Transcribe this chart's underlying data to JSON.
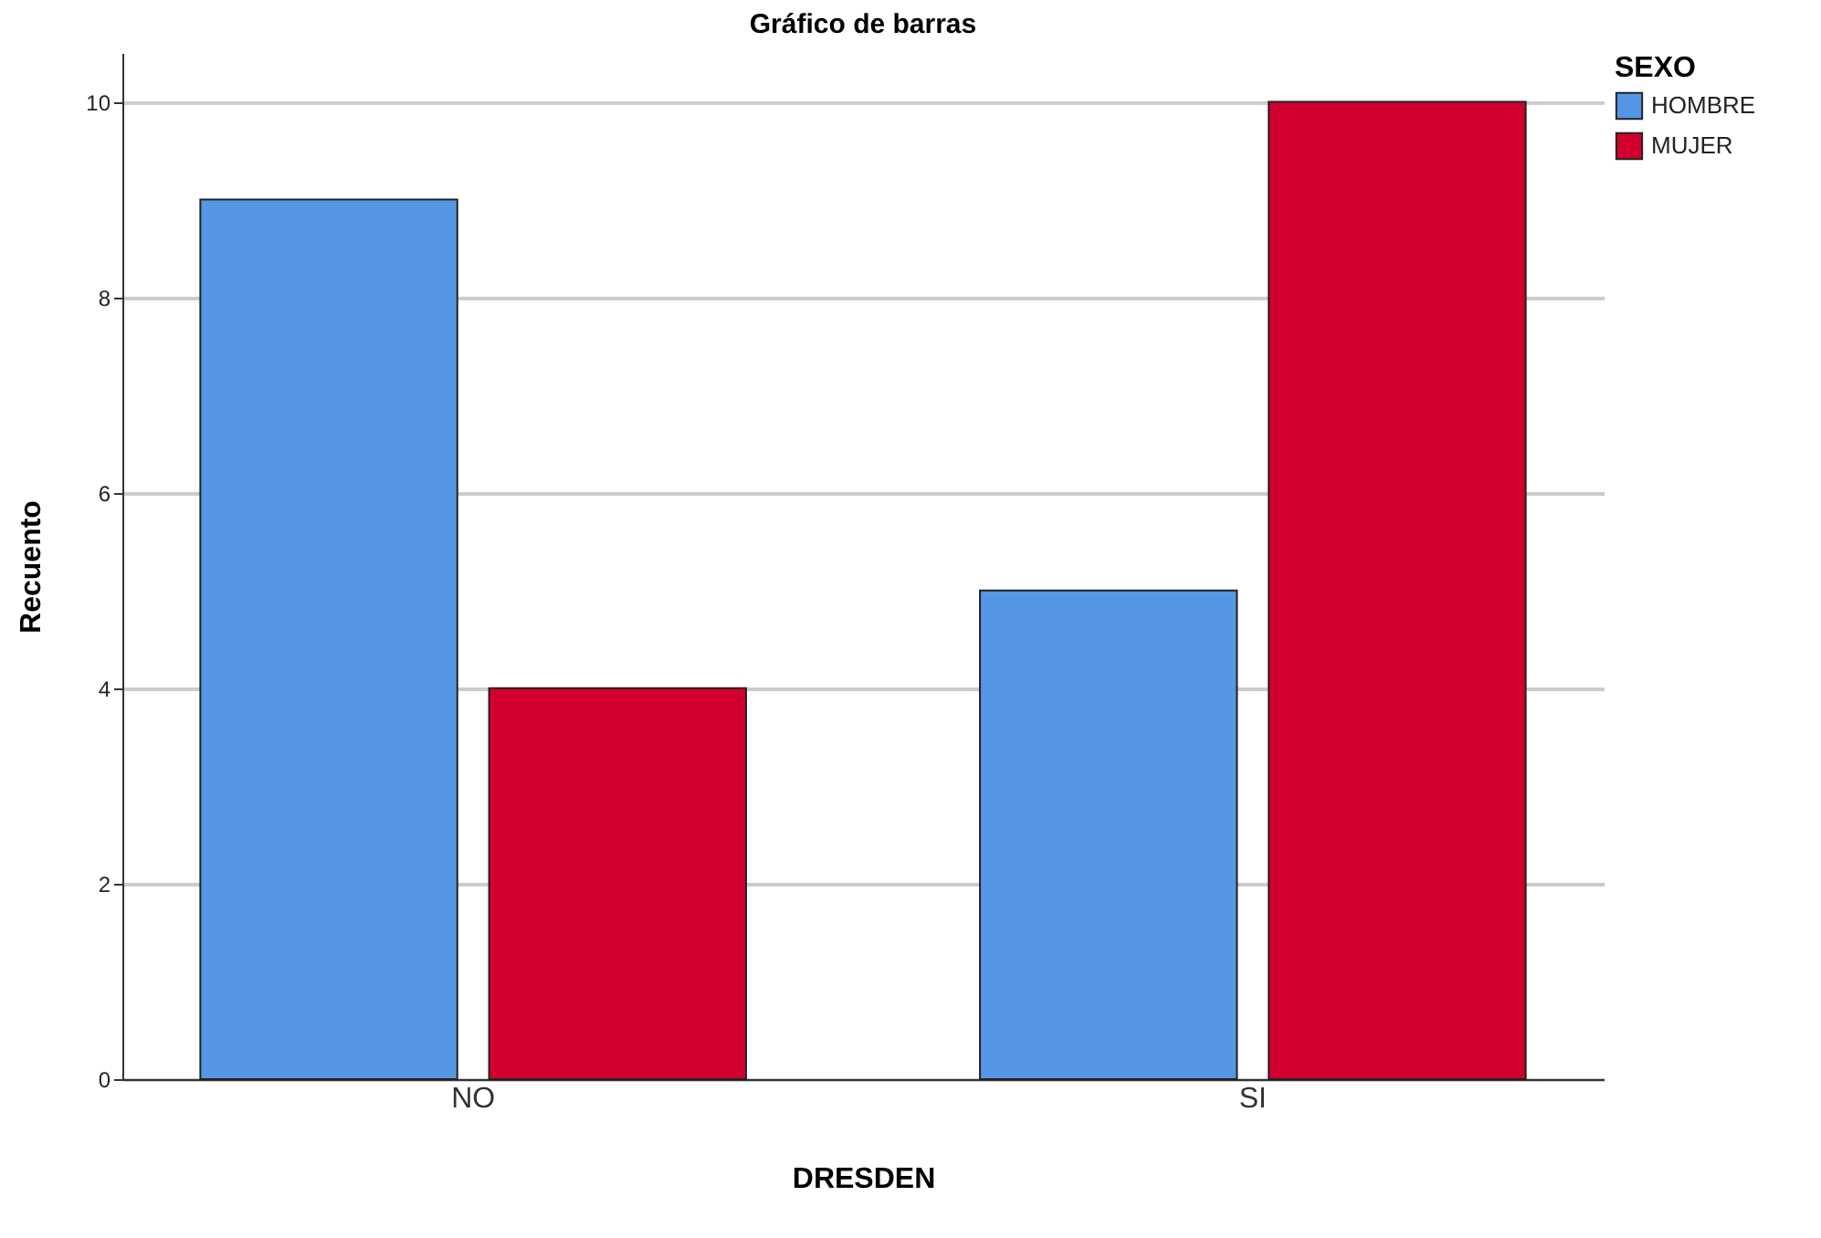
{
  "chart_data": {
    "type": "bar",
    "title": "Gráfico de barras",
    "xlabel": "DRESDEN",
    "ylabel": "Recuento",
    "legend_title": "SEXO",
    "categories": [
      "NO",
      "SI"
    ],
    "series": [
      {
        "name": "HOMBRE",
        "color": "#5596e5",
        "values": [
          9,
          5
        ]
      },
      {
        "name": "MUJER",
        "color": "#d2002e",
        "values": [
          4,
          10
        ]
      }
    ],
    "ylim": [
      0,
      10.5
    ],
    "yticks": [
      0,
      2,
      4,
      6,
      8,
      10
    ],
    "grid": "y",
    "legend": "top right"
  }
}
